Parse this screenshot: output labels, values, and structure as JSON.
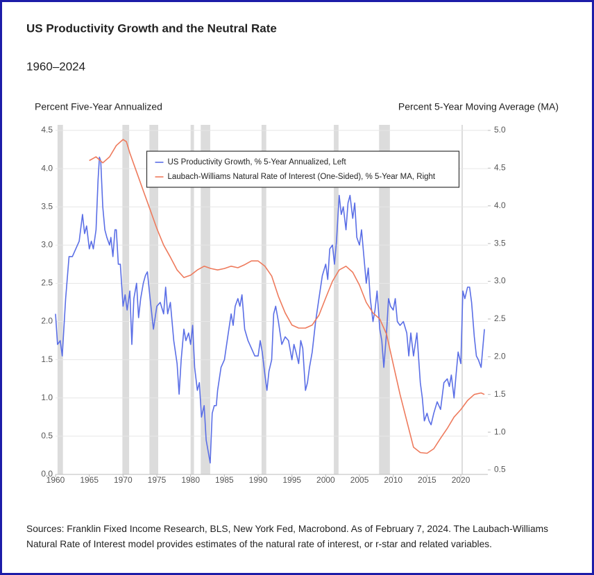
{
  "chart_data": {
    "type": "line",
    "title": "US Productivity Growth and the Neutral Rate",
    "subtitle": "1960–2024",
    "y_label": "Percent Five-Year Annualized",
    "y2_label": "Percent 5-Year Moving Average (MA)",
    "source": "Sources: Franklin Fixed Income Research, BLS, New York Fed, Macrobond. As of February 7, 2024. The Laubach-Williams Natural Rate of Interest model provides estimates of the natural rate of interest, or r-star and related variables.",
    "xlim": [
      1960,
      2024
    ],
    "xticks": [
      1960,
      1965,
      1970,
      1975,
      1980,
      1985,
      1990,
      1995,
      2000,
      2005,
      2010,
      2015,
      2020
    ],
    "ylim": [
      0,
      4.5
    ],
    "yticks": [
      {
        "value": 0,
        "label": "0.0"
      },
      0.5,
      {
        "value": 1,
        "label": "1.0"
      },
      1.5,
      {
        "value": 2,
        "label": "2.0"
      },
      2.5,
      {
        "value": 3,
        "label": "3.0"
      },
      3.5,
      {
        "value": 4,
        "label": "4.0"
      },
      4.5
    ],
    "y2lim": [
      0.44,
      5.0
    ],
    "y2ticks": [
      0.5,
      {
        "value": 1,
        "label": "1.0"
      },
      1.5,
      {
        "value": 2,
        "label": "2.0"
      },
      2.5,
      {
        "value": 3,
        "label": "3.0"
      },
      3.5,
      {
        "value": 4,
        "label": "4.0"
      },
      4.5,
      {
        "value": 5,
        "label": "5.0"
      }
    ],
    "grid": true,
    "legend": "upper center",
    "shaded_periods": [
      [
        1960.3,
        1961.1
      ],
      [
        1969.9,
        1970.9
      ],
      [
        1973.9,
        1975.2
      ],
      [
        1980.0,
        1980.5
      ],
      [
        1981.5,
        1982.9
      ],
      [
        1990.5,
        1991.2
      ],
      [
        2001.2,
        2001.9
      ],
      [
        2007.9,
        2009.5
      ],
      [
        2020.1,
        2020.3
      ]
    ],
    "shade_color": "#dcdcdc",
    "series": [
      {
        "name": "US Productivity Growth, % 5-Year Annualized, Left",
        "color": "#5a6ee6",
        "axis": "y",
        "x": [
          1960,
          1960.3,
          1960.7,
          1961,
          1961.5,
          1962,
          1962.5,
          1963,
          1963.5,
          1964,
          1964.3,
          1964.6,
          1965,
          1965.3,
          1965.6,
          1966,
          1966.3,
          1966.5,
          1966.7,
          1967,
          1967.3,
          1967.6,
          1968,
          1968.2,
          1968.5,
          1968.8,
          1969,
          1969.3,
          1969.6,
          1970,
          1970.3,
          1970.6,
          1971,
          1971.3,
          1971.6,
          1972,
          1972.3,
          1972.6,
          1973,
          1973.3,
          1973.6,
          1974,
          1974.5,
          1975,
          1975.5,
          1976,
          1976.3,
          1976.6,
          1977,
          1977.5,
          1978,
          1978.3,
          1978.6,
          1979,
          1979.3,
          1979.7,
          1980,
          1980.3,
          1980.6,
          1981,
          1981.3,
          1981.6,
          1982,
          1982.3,
          1982.6,
          1982.9,
          1983.2,
          1983.5,
          1983.8,
          1984,
          1984.5,
          1985,
          1985.5,
          1986,
          1986.3,
          1986.6,
          1987,
          1987.3,
          1987.6,
          1988,
          1988.5,
          1989,
          1989.5,
          1990,
          1990.3,
          1990.6,
          1991,
          1991.3,
          1991.6,
          1992,
          1992.3,
          1992.6,
          1993,
          1993.5,
          1994,
          1994.5,
          1995,
          1995.3,
          1995.6,
          1996,
          1996.3,
          1996.6,
          1997,
          1997.3,
          1997.6,
          1998,
          1998.5,
          1999,
          1999.5,
          2000,
          2000.3,
          2000.6,
          2001,
          2001.3,
          2001.6,
          2002,
          2002.3,
          2002.6,
          2003,
          2003.3,
          2003.6,
          2004,
          2004.3,
          2004.6,
          2005,
          2005.3,
          2005.6,
          2006,
          2006.3,
          2006.6,
          2007,
          2007.3,
          2007.6,
          2008,
          2008.3,
          2008.6,
          2009,
          2009.3,
          2009.6,
          2010,
          2010.3,
          2010.6,
          2011,
          2011.5,
          2012,
          2012.3,
          2012.6,
          2013,
          2013.5,
          2014,
          2014.3,
          2014.6,
          2015,
          2015.3,
          2015.6,
          2016,
          2016.5,
          2017,
          2017.5,
          2018,
          2018.3,
          2018.6,
          2019,
          2019.3,
          2019.6,
          2020,
          2020.3,
          2020.6,
          2021,
          2021.3,
          2021.6,
          2022,
          2022.3,
          2022.6,
          2023,
          2023.5
        ],
        "values": [
          2.1,
          1.7,
          1.75,
          1.55,
          2.3,
          2.85,
          2.85,
          2.95,
          3.05,
          3.4,
          3.15,
          3.25,
          2.95,
          3.05,
          2.95,
          3.2,
          3.85,
          4.15,
          4.1,
          3.5,
          3.2,
          3.1,
          3.0,
          3.1,
          2.85,
          3.2,
          3.2,
          2.75,
          2.75,
          2.2,
          2.35,
          2.15,
          2.4,
          1.7,
          2.3,
          2.5,
          2.05,
          2.3,
          2.5,
          2.6,
          2.65,
          2.3,
          1.9,
          2.2,
          2.25,
          2.1,
          2.45,
          2.1,
          2.25,
          1.75,
          1.45,
          1.05,
          1.5,
          1.9,
          1.75,
          1.85,
          1.7,
          1.95,
          1.4,
          1.1,
          1.2,
          0.75,
          0.9,
          0.45,
          0.3,
          0.15,
          0.8,
          0.9,
          0.9,
          1.1,
          1.4,
          1.5,
          1.8,
          2.1,
          1.95,
          2.2,
          2.3,
          2.2,
          2.35,
          1.9,
          1.75,
          1.65,
          1.55,
          1.55,
          1.75,
          1.6,
          1.3,
          1.1,
          1.35,
          1.5,
          2.1,
          2.2,
          2.0,
          1.7,
          1.8,
          1.75,
          1.5,
          1.7,
          1.6,
          1.45,
          1.75,
          1.65,
          1.1,
          1.2,
          1.4,
          1.6,
          2.0,
          2.3,
          2.6,
          2.75,
          2.55,
          2.95,
          3.0,
          2.75,
          3.05,
          3.65,
          3.4,
          3.5,
          3.2,
          3.55,
          3.65,
          3.35,
          3.55,
          3.1,
          3.0,
          3.2,
          2.9,
          2.5,
          2.7,
          2.3,
          2.0,
          2.15,
          2.4,
          1.9,
          1.75,
          1.4,
          1.85,
          2.3,
          2.2,
          2.15,
          2.3,
          2.0,
          1.95,
          2.0,
          1.85,
          1.55,
          1.85,
          1.55,
          1.85,
          1.2,
          1.0,
          0.7,
          0.8,
          0.7,
          0.65,
          0.8,
          0.95,
          0.85,
          1.2,
          1.25,
          1.15,
          1.3,
          1.0,
          1.3,
          1.6,
          1.45,
          2.4,
          2.3,
          2.45,
          2.45,
          2.25,
          1.8,
          1.55,
          1.5,
          1.4,
          1.9
        ]
      },
      {
        "name": "Laubach-Williams Natural Rate of Interest (One-Sided), % 5-Year MA, Right",
        "color": "#ee7a5c",
        "axis": "y2",
        "x": [
          1965,
          1966,
          1967,
          1968,
          1969,
          1970,
          1970.5,
          1971,
          1972,
          1973,
          1974,
          1975,
          1976,
          1977,
          1978,
          1979,
          1980,
          1981,
          1982,
          1983,
          1984,
          1985,
          1986,
          1987,
          1988,
          1989,
          1990,
          1991,
          1992,
          1993,
          1994,
          1995,
          1996,
          1997,
          1998,
          1999,
          2000,
          2001,
          2002,
          2003,
          2004,
          2005,
          2006,
          2007,
          2008,
          2009,
          2010,
          2011,
          2012,
          2013,
          2014,
          2015,
          2016,
          2017,
          2018,
          2019,
          2020,
          2021,
          2022,
          2023,
          2023.5
        ],
        "values": [
          4.6,
          4.65,
          4.57,
          4.65,
          4.8,
          4.88,
          4.85,
          4.7,
          4.45,
          4.2,
          3.95,
          3.7,
          3.48,
          3.32,
          3.15,
          3.05,
          3.08,
          3.15,
          3.2,
          3.17,
          3.15,
          3.17,
          3.2,
          3.18,
          3.22,
          3.27,
          3.27,
          3.2,
          3.07,
          2.8,
          2.58,
          2.42,
          2.38,
          2.38,
          2.42,
          2.55,
          2.78,
          3.0,
          3.15,
          3.2,
          3.12,
          2.95,
          2.72,
          2.58,
          2.5,
          2.3,
          1.9,
          1.5,
          1.15,
          0.8,
          0.73,
          0.72,
          0.78,
          0.92,
          1.05,
          1.2,
          1.3,
          1.42,
          1.5,
          1.52,
          1.5
        ]
      }
    ]
  }
}
